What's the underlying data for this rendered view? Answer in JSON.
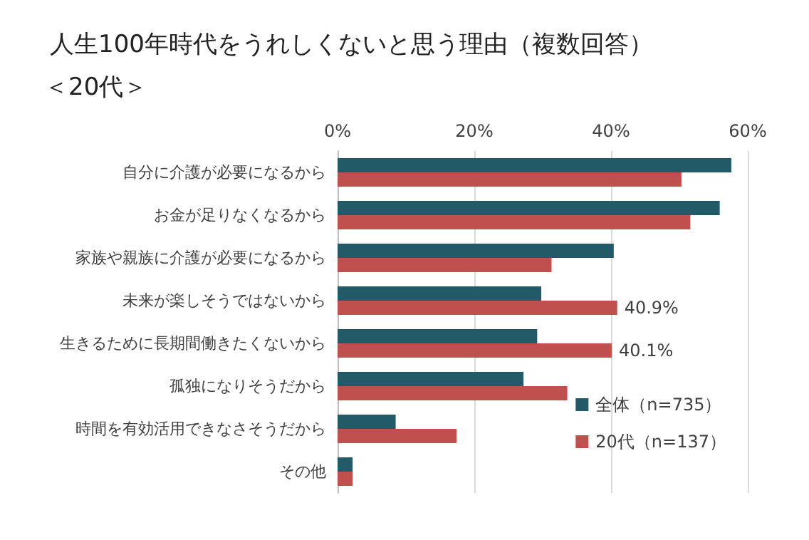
{
  "chart_data": {
    "type": "bar",
    "orientation": "horizontal",
    "title": "人生100年時代をうれしくないと思う理由（複数回答）",
    "subtitle": "＜20代＞",
    "categories": [
      "自分に介護が必要になるから",
      "お金が足りなくなるから",
      "家族や親族に介護が必要になるから",
      "未来が楽しそうではないから",
      "生きるために長期間働きたくないから",
      "孤独になりそうだから",
      "時間を有効活用できなさそうだから",
      "その他"
    ],
    "series": [
      {
        "name": "全体（n=735）",
        "color": "#235a68",
        "values": [
          57.6,
          55.9,
          40.4,
          29.8,
          29.2,
          27.2,
          8.5,
          2.2
        ]
      },
      {
        "name": "20代（n=137）",
        "color": "#c0504d",
        "values": [
          50.3,
          51.6,
          31.3,
          40.9,
          40.1,
          33.6,
          17.4,
          2.2
        ],
        "value_labels": [
          null,
          null,
          null,
          "40.9%",
          "40.1%",
          null,
          null,
          null
        ]
      }
    ],
    "xlim": [
      0,
      60
    ],
    "xticks": [
      {
        "value": 0,
        "label": "0%"
      },
      {
        "value": 20,
        "label": "20%"
      },
      {
        "value": 40,
        "label": "40%"
      },
      {
        "value": 60,
        "label": "60%"
      }
    ],
    "grid": "x",
    "legend": "bottom right"
  }
}
